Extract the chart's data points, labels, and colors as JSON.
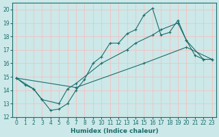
{
  "xlabel": "Humidex (Indice chaleur)",
  "xlim": [
    -0.5,
    23.5
  ],
  "ylim": [
    12,
    20.5
  ],
  "yticks": [
    12,
    13,
    14,
    15,
    16,
    17,
    18,
    19,
    20
  ],
  "xticks": [
    0,
    1,
    2,
    3,
    4,
    5,
    6,
    7,
    8,
    9,
    10,
    11,
    12,
    13,
    14,
    15,
    16,
    17,
    18,
    19,
    20,
    21,
    22,
    23
  ],
  "bg_color": "#cce8e8",
  "line_color": "#1a6b6b",
  "grid_color": "#f5c0c0",
  "line1_x": [
    0,
    1,
    2,
    3,
    4,
    5,
    6,
    7,
    8,
    9,
    10,
    11,
    12,
    13,
    14,
    15,
    16,
    17,
    18,
    19,
    20,
    21,
    22,
    23
  ],
  "line1_y": [
    14.9,
    14.4,
    14.1,
    13.3,
    12.5,
    12.6,
    13.0,
    14.0,
    14.8,
    16.0,
    16.5,
    17.5,
    17.5,
    18.2,
    18.5,
    19.6,
    20.1,
    18.1,
    18.3,
    19.2,
    17.7,
    16.6,
    16.3,
    16.3
  ],
  "line2_x": [
    0,
    2,
    3,
    5,
    6,
    7,
    10,
    13,
    14,
    16,
    17,
    19,
    20,
    22,
    23
  ],
  "line2_y": [
    14.9,
    14.1,
    13.3,
    13.0,
    14.1,
    14.5,
    16.0,
    17.0,
    17.5,
    18.1,
    18.5,
    19.0,
    17.7,
    16.3,
    16.3
  ],
  "line3_x": [
    0,
    7,
    15,
    20,
    23
  ],
  "line3_y": [
    14.9,
    14.2,
    16.0,
    17.2,
    16.3
  ]
}
